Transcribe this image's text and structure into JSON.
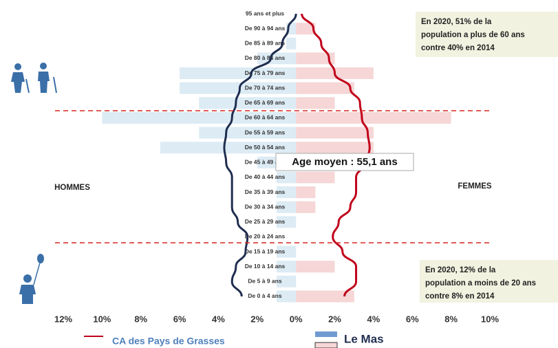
{
  "chart_data": {
    "type": "pyramid",
    "categories": [
      "95 ans et plus",
      "De 90 à 94 ans",
      "De 85 à 89 ans",
      "De 80 à 84 ans",
      "De 75 à 79 ans",
      "De 70 à 74 ans",
      "De 65 à 69 ans",
      "De 60 à 64 ans",
      "De 55 à 59 ans",
      "De 50 à 54 ans",
      "De 45 à 49 ans",
      "De 40 à 44 ans",
      "De 35 à 39 ans",
      "De 30 à 34 ans",
      "De 25 à 29 ans",
      "De 20 à 24 ans",
      "De 15 à 19 ans",
      "De 10 à 14 ans",
      "De 5 à 9 ans",
      "De 0 à 4 ans"
    ],
    "left_label": "HOMMES",
    "right_label": "FEMMES",
    "series": [
      {
        "name": "CA des Pays de Grasses",
        "kind": "line",
        "left_color": "#1f2d4f",
        "right_color": "#c0001a",
        "left_values": [
          0,
          0.4,
          0.7,
          1.3,
          2.3,
          2.9,
          3.1,
          3.3,
          3.6,
          3.7,
          3.6,
          3.3,
          3.3,
          3.3,
          3.0,
          2.5,
          2.6,
          3.1,
          3.3,
          2.8
        ],
        "right_values": [
          0.3,
          0.9,
          1.3,
          1.7,
          2.0,
          2.8,
          3.3,
          3.4,
          3.7,
          3.8,
          3.6,
          3.1,
          3.1,
          2.8,
          2.2,
          1.9,
          2.4,
          3.1,
          3.1,
          2.5
        ]
      },
      {
        "name": "Le Mas",
        "kind": "bar",
        "left_color": "#dcebf4",
        "right_color": "#f6d6d6",
        "left_values": [
          0,
          0.5,
          0.5,
          2,
          6,
          6,
          5,
          10,
          5,
          7,
          2,
          1,
          1,
          1,
          1,
          0,
          1,
          1,
          1,
          1
        ],
        "right_values": [
          0,
          1,
          0,
          2,
          4,
          3,
          2,
          8,
          4,
          4,
          2,
          2,
          1,
          1,
          0,
          0,
          0,
          2,
          0,
          3
        ]
      }
    ],
    "xlim": [
      -12,
      10
    ],
    "xticks": [
      {
        "value": -12,
        "label": "12%"
      },
      {
        "value": -10,
        "label": "10%"
      },
      {
        "value": -8,
        "label": "8%"
      },
      {
        "value": -6,
        "label": "6%"
      },
      {
        "value": -4,
        "label": "4%"
      },
      {
        "value": -2,
        "label": "2%"
      },
      {
        "value": 0,
        "label": "0%"
      },
      {
        "value": 2,
        "label": "2%"
      },
      {
        "value": 4,
        "label": "4%"
      },
      {
        "value": 6,
        "label": "6%"
      },
      {
        "value": 8,
        "label": "8%"
      },
      {
        "value": 10,
        "label": "10%"
      }
    ],
    "annotations": [
      {
        "lines": [
          "En 2020, 51% de la",
          "population a plus de 60 ans",
          "contre 40% en 2014"
        ]
      },
      {
        "lines": [
          "En 2020, 12% de la",
          "population a moins de 20 ans",
          "contre 8% en 2014"
        ]
      },
      {
        "lines": [
          "Age moyen : 55,1 ans"
        ]
      }
    ]
  }
}
